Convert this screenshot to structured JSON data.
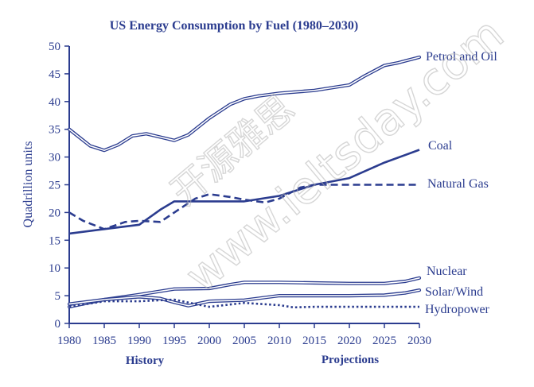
{
  "chart_data": {
    "type": "line",
    "title": "US Energy Consumption by Fuel (1980–2030)",
    "xlabel": "",
    "ylabel": "Quadrillion units",
    "xlim": [
      1980,
      2030
    ],
    "ylim": [
      0,
      50
    ],
    "x_ticks": [
      "1980",
      "1985",
      "1990",
      "1995",
      "2000",
      "2005",
      "2010",
      "2015",
      "2020",
      "2025",
      "2030"
    ],
    "y_ticks": [
      "0",
      "5",
      "10",
      "15",
      "20",
      "25",
      "30",
      "35",
      "40",
      "45",
      "50"
    ],
    "grid": false,
    "section_labels": [
      "History",
      "Projections"
    ],
    "colors": {
      "series": "#2b3c8f",
      "watermark": "#c8c8c8"
    },
    "series": [
      {
        "name": "Petrol and Oil",
        "style": "double",
        "x": [
          1980,
          1981,
          1983,
          1985,
          1987,
          1989,
          1991,
          1993,
          1995,
          1997,
          2000,
          2003,
          2005,
          2007,
          2010,
          2015,
          2020,
          2022,
          2025,
          2027,
          2030
        ],
        "y": [
          35,
          34,
          32,
          31.2,
          32.2,
          33.8,
          34.2,
          33.6,
          33,
          34,
          37,
          39.5,
          40.5,
          41,
          41.5,
          42,
          43,
          44.5,
          46.5,
          47,
          48
        ]
      },
      {
        "name": "Coal",
        "style": "solid",
        "x": [
          1980,
          1985,
          1990,
          1993,
          1995,
          2000,
          2005,
          2010,
          2015,
          2020,
          2025,
          2030
        ],
        "y": [
          16.2,
          17,
          17.8,
          20.5,
          22,
          22,
          22,
          23,
          25,
          26.2,
          29,
          31.3
        ]
      },
      {
        "name": "Natural Gas",
        "style": "dashed",
        "x": [
          1980,
          1982,
          1985,
          1988,
          1990,
          1993,
          1995,
          1998,
          2000,
          2003,
          2005,
          2008,
          2010,
          2013,
          2015,
          2020,
          2025,
          2030
        ],
        "y": [
          20,
          18.5,
          17,
          18.3,
          18.5,
          18.3,
          20,
          22.5,
          23.3,
          22.8,
          22.3,
          21.8,
          22.5,
          24.5,
          25,
          25,
          25,
          25
        ]
      },
      {
        "name": "Nuclear",
        "style": "double",
        "x": [
          1980,
          1985,
          1990,
          1995,
          2000,
          2003,
          2005,
          2010,
          2015,
          2020,
          2025,
          2028,
          2030
        ],
        "y": [
          3,
          4.3,
          5.2,
          6.2,
          6.3,
          7,
          7.4,
          7.4,
          7.3,
          7.2,
          7.2,
          7.6,
          8.2
        ]
      },
      {
        "name": "Solar/Wind",
        "style": "double",
        "x": [
          1980,
          1985,
          1990,
          1993,
          1995,
          1997,
          2000,
          2005,
          2010,
          2015,
          2020,
          2025,
          2028,
          2030
        ],
        "y": [
          3.5,
          4.3,
          4.8,
          4.5,
          3.8,
          3.2,
          4,
          4.2,
          5,
          5,
          5,
          5.1,
          5.5,
          6
        ]
      },
      {
        "name": "Hydropower",
        "style": "dotted",
        "x": [
          1980,
          1985,
          1990,
          1995,
          1998,
          2000,
          2005,
          2010,
          2012,
          2015,
          2020,
          2030
        ],
        "y": [
          3,
          4,
          4,
          4.3,
          3.5,
          3,
          3.7,
          3.3,
          2.9,
          3,
          3,
          3
        ]
      }
    ]
  },
  "watermark": {
    "line1": "开源雅思",
    "line2": "www.ieltsday.com"
  }
}
